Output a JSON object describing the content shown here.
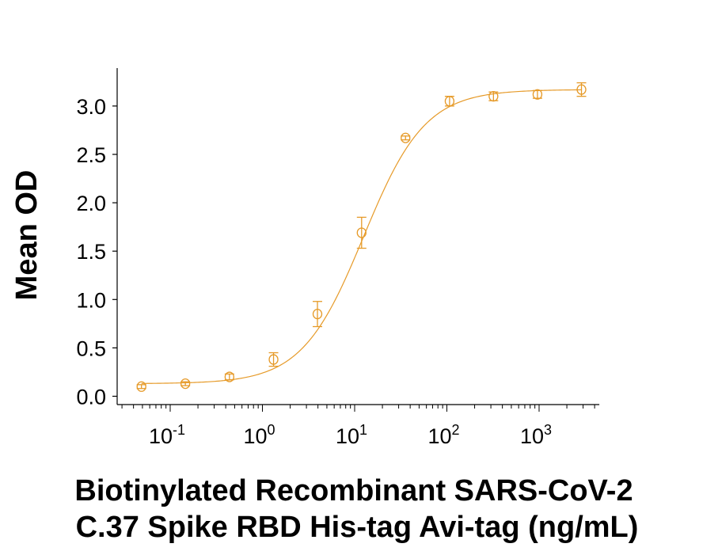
{
  "chart_data": {
    "type": "scatter",
    "title": "",
    "xlabel_lines": [
      "Biotinylated Recombinant SARS-CoV-2",
      "C.37 Spike RBD His-tag Avi-tag (ng/mL)"
    ],
    "ylabel": "Mean OD",
    "x_scale": "log",
    "xlim": [
      0.028,
      4500
    ],
    "ylim": [
      0,
      3.2
    ],
    "x_ticks": [
      0.1,
      1,
      10,
      100,
      1000
    ],
    "x_tick_labels": [
      {
        "base": "10",
        "exp": "-1"
      },
      {
        "base": "10",
        "exp": "0"
      },
      {
        "base": "10",
        "exp": "1"
      },
      {
        "base": "10",
        "exp": "2"
      },
      {
        "base": "10",
        "exp": "3"
      }
    ],
    "y_ticks": [
      0,
      0.5,
      1.0,
      1.5,
      2.0,
      2.5,
      3.0
    ],
    "y_tick_labels": [
      "0.0",
      "0.5",
      "1.0",
      "1.5",
      "2.0",
      "2.5",
      "3.0"
    ],
    "grid": false,
    "color": "#E69A28",
    "series": [
      {
        "x": [
          0.0488,
          0.146,
          0.439,
          1.32,
          3.95,
          11.9,
          35.6,
          107,
          320,
          960,
          2880
        ],
        "y": [
          0.1,
          0.13,
          0.2,
          0.38,
          0.85,
          1.69,
          2.67,
          3.05,
          3.1,
          3.12,
          3.17
        ],
        "error": [
          0.02,
          0.02,
          0.03,
          0.07,
          0.13,
          0.16,
          0.02,
          0.05,
          0.045,
          0.04,
          0.07
        ],
        "fit": "4PL curve"
      }
    ]
  }
}
